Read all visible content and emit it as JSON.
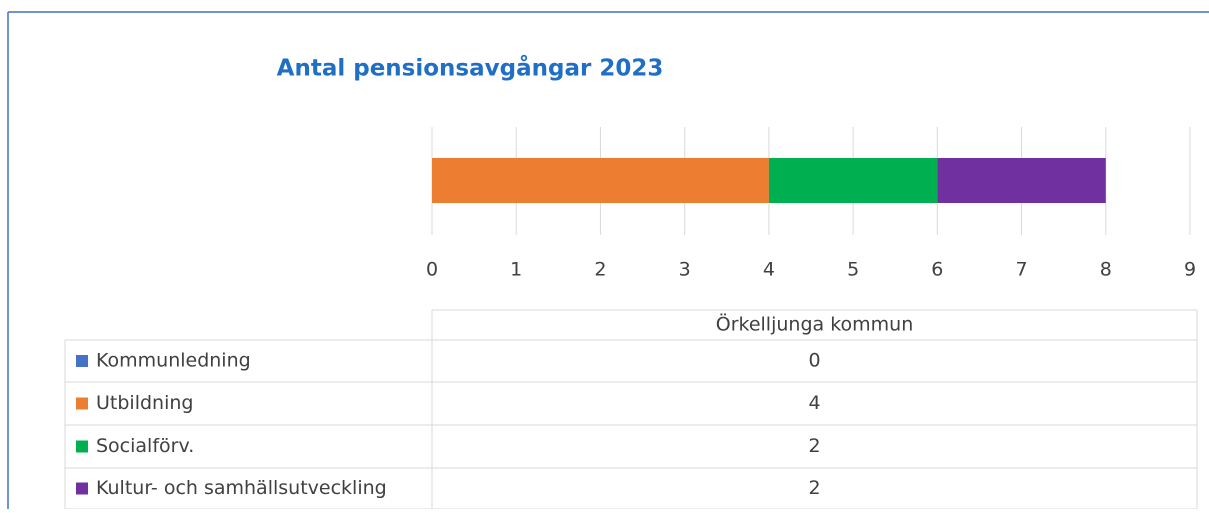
{
  "chart_data": {
    "type": "stacked_bar_horizontal",
    "title": "Antal pensionsavgångar 2023",
    "categories": [
      "Örkelljunga kommun"
    ],
    "series": [
      {
        "name": "Kommunledning",
        "color": "#4472c4",
        "values": [
          0
        ]
      },
      {
        "name": "Utbildning",
        "color": "#ed7d31",
        "values": [
          4
        ]
      },
      {
        "name": "Socialförv.",
        "color": "#00b050",
        "values": [
          2
        ]
      },
      {
        "name": "Kultur- och samhällsutveckling",
        "color": "#7030a0",
        "values": [
          2
        ]
      }
    ],
    "xlim": [
      0,
      9
    ],
    "xticks": [
      0,
      1,
      2,
      3,
      4,
      5,
      6,
      7,
      8,
      9
    ],
    "grid": true,
    "data_table": true
  }
}
